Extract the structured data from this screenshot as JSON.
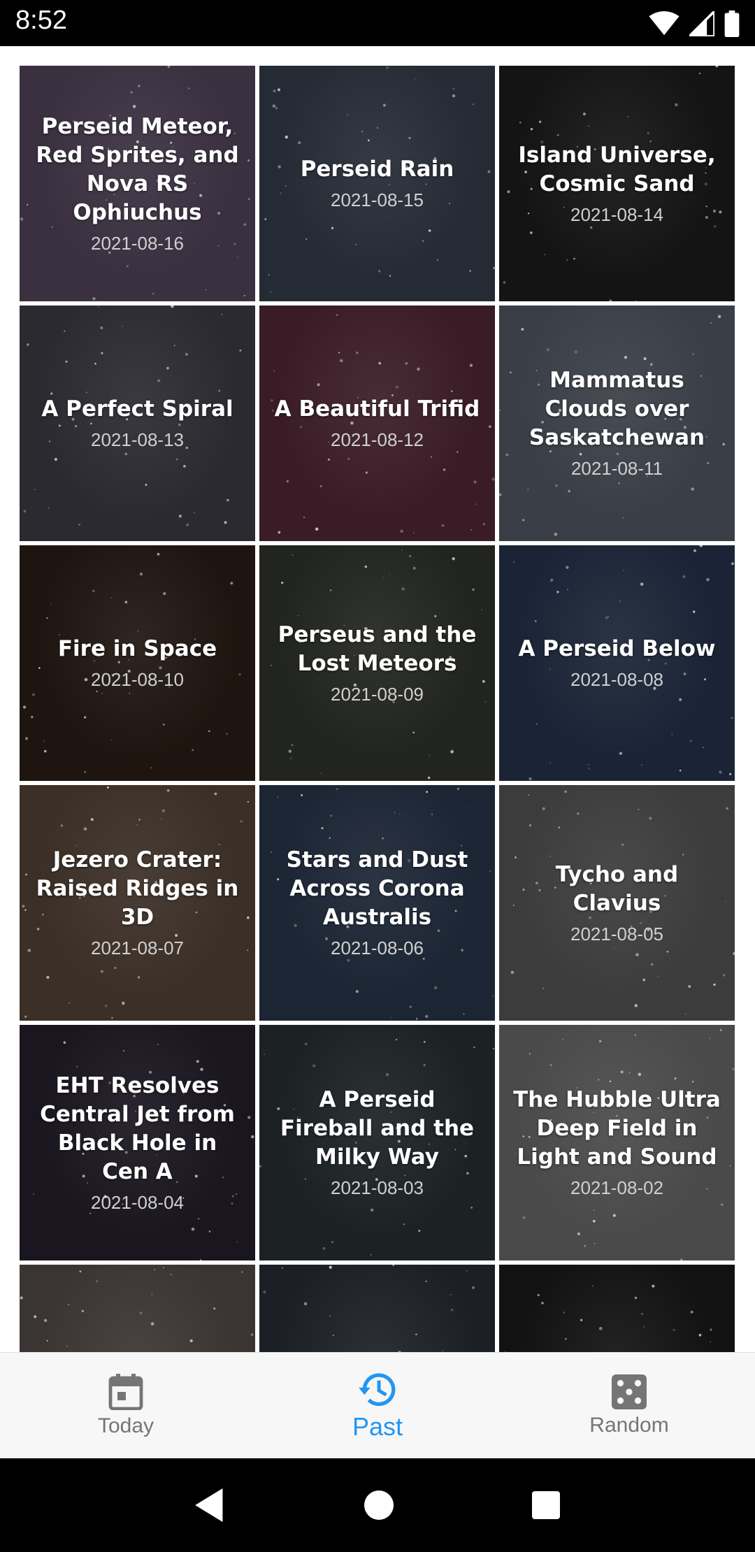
{
  "status_bar": {
    "time": "8:52"
  },
  "tiles": [
    {
      "title": "Perseid Meteor, Red Sprites, and Nova RS Ophiuchus",
      "date": "2021-08-16",
      "bg": "#3a3040"
    },
    {
      "title": "Perseid Rain",
      "date": "2021-08-15",
      "bg": "#252b35"
    },
    {
      "title": "Island Universe, Cosmic Sand",
      "date": "2021-08-14",
      "bg": "#141414"
    },
    {
      "title": "A Perfect Spiral",
      "date": "2021-08-13",
      "bg": "#2a2a30"
    },
    {
      "title": "A Beautiful Trifid",
      "date": "2021-08-12",
      "bg": "#3a1c26"
    },
    {
      "title": "Mammatus Clouds over Saskatchewan",
      "date": "2021-08-11",
      "bg": "#3a3e46"
    },
    {
      "title": "Fire in Space",
      "date": "2021-08-10",
      "bg": "#1f1510"
    },
    {
      "title": "Perseus and the Lost Meteors",
      "date": "2021-08-09",
      "bg": "#22241f"
    },
    {
      "title": "A Perseid Below",
      "date": "2021-08-08",
      "bg": "#1a2436"
    },
    {
      "title": "Jezero Crater: Raised Ridges in 3D",
      "date": "2021-08-07",
      "bg": "#3b2f26"
    },
    {
      "title": "Stars and Dust Across Corona Australis",
      "date": "2021-08-06",
      "bg": "#1c2534"
    },
    {
      "title": "Tycho and Clavius",
      "date": "2021-08-05",
      "bg": "#3c3c3c"
    },
    {
      "title": "EHT Resolves Central Jet from Black Hole in Cen A",
      "date": "2021-08-04",
      "bg": "#1a1620"
    },
    {
      "title": "A Perseid Fireball and the Milky Way",
      "date": "2021-08-03",
      "bg": "#1c2224"
    },
    {
      "title": "The Hubble Ultra Deep Field in Light and Sound",
      "date": "2021-08-02",
      "bg": "#4a4a4a"
    },
    {
      "title": "",
      "date": "",
      "bg": "#3a3532"
    },
    {
      "title": "",
      "date": "",
      "bg": "#1c2026"
    },
    {
      "title": "",
      "date": "",
      "bg": "#121212"
    }
  ],
  "bottom_nav": {
    "items": [
      {
        "label": "Today",
        "icon": "calendar-icon"
      },
      {
        "label": "Past",
        "icon": "history-icon"
      },
      {
        "label": "Random",
        "icon": "dice-icon"
      }
    ],
    "active_index": 1,
    "active_color": "#2196f3",
    "inactive_color": "#757575"
  }
}
